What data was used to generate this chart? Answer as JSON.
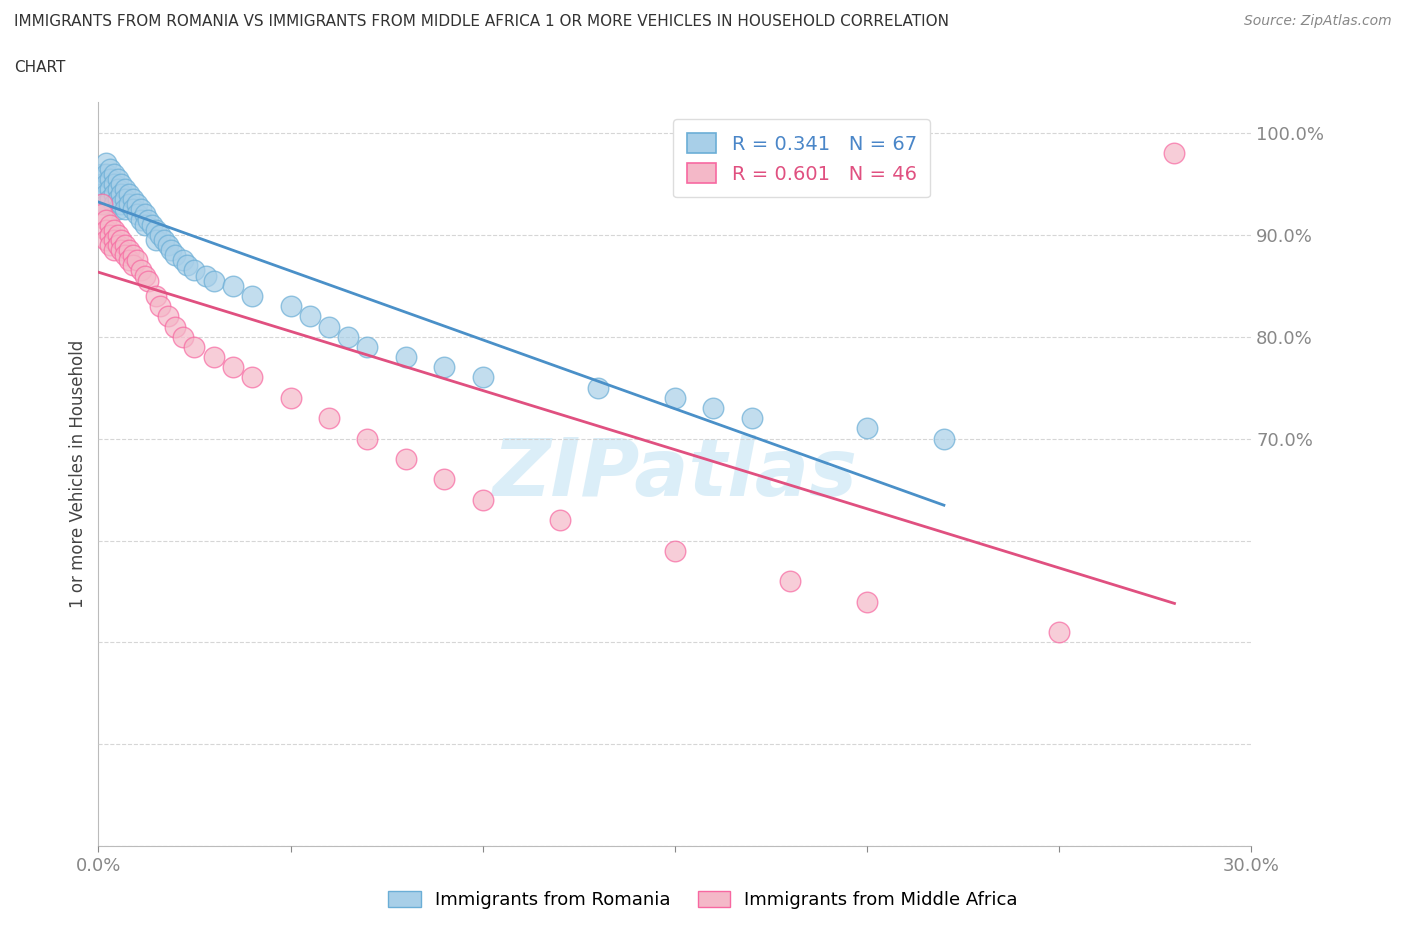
{
  "title_line1": "IMMIGRANTS FROM ROMANIA VS IMMIGRANTS FROM MIDDLE AFRICA 1 OR MORE VEHICLES IN HOUSEHOLD CORRELATION",
  "title_line2": "CHART",
  "source": "Source: ZipAtlas.com",
  "ylabel": "1 or more Vehicles in Household",
  "xlim": [
    0.0,
    0.3
  ],
  "ylim": [
    0.3,
    1.03
  ],
  "xtick_positions": [
    0.0,
    0.05,
    0.1,
    0.15,
    0.2,
    0.25,
    0.3
  ],
  "xtick_labels": [
    "0.0%",
    "",
    "",
    "",
    "",
    "",
    "30.0%"
  ],
  "ytick_positions": [
    0.3,
    0.4,
    0.5,
    0.6,
    0.7,
    0.8,
    0.9,
    1.0
  ],
  "ytick_labels": [
    "",
    "",
    "",
    "",
    "70.0%",
    "80.0%",
    "90.0%",
    "100.0%"
  ],
  "legend_romania": "Immigrants from Romania",
  "legend_africa": "Immigrants from Middle Africa",
  "R_romania": 0.341,
  "N_romania": 67,
  "R_africa": 0.601,
  "N_africa": 46,
  "romania_color": "#a8cfe8",
  "africa_color": "#f4b8c8",
  "romania_edge_color": "#6baed6",
  "africa_edge_color": "#f768a1",
  "romania_line_color": "#4a90c8",
  "africa_line_color": "#e05080",
  "watermark_color": "#d8edf8",
  "romania_x": [
    0.001,
    0.001,
    0.001,
    0.001,
    0.002,
    0.002,
    0.002,
    0.002,
    0.002,
    0.003,
    0.003,
    0.003,
    0.003,
    0.004,
    0.004,
    0.004,
    0.004,
    0.005,
    0.005,
    0.005,
    0.005,
    0.006,
    0.006,
    0.006,
    0.007,
    0.007,
    0.007,
    0.008,
    0.008,
    0.009,
    0.009,
    0.01,
    0.01,
    0.011,
    0.011,
    0.012,
    0.012,
    0.013,
    0.014,
    0.015,
    0.015,
    0.016,
    0.017,
    0.018,
    0.019,
    0.02,
    0.022,
    0.023,
    0.025,
    0.028,
    0.03,
    0.035,
    0.04,
    0.05,
    0.055,
    0.06,
    0.065,
    0.07,
    0.08,
    0.09,
    0.1,
    0.13,
    0.15,
    0.16,
    0.17,
    0.2,
    0.22
  ],
  "romania_y": [
    0.96,
    0.95,
    0.94,
    0.93,
    0.97,
    0.96,
    0.95,
    0.94,
    0.93,
    0.965,
    0.955,
    0.945,
    0.935,
    0.96,
    0.95,
    0.94,
    0.93,
    0.955,
    0.945,
    0.935,
    0.925,
    0.95,
    0.94,
    0.93,
    0.945,
    0.935,
    0.925,
    0.94,
    0.93,
    0.935,
    0.925,
    0.93,
    0.92,
    0.925,
    0.915,
    0.92,
    0.91,
    0.915,
    0.91,
    0.905,
    0.895,
    0.9,
    0.895,
    0.89,
    0.885,
    0.88,
    0.875,
    0.87,
    0.865,
    0.86,
    0.855,
    0.85,
    0.84,
    0.83,
    0.82,
    0.81,
    0.8,
    0.79,
    0.78,
    0.77,
    0.76,
    0.75,
    0.74,
    0.73,
    0.72,
    0.71,
    0.7
  ],
  "africa_x": [
    0.001,
    0.001,
    0.002,
    0.002,
    0.002,
    0.003,
    0.003,
    0.003,
    0.004,
    0.004,
    0.004,
    0.005,
    0.005,
    0.006,
    0.006,
    0.007,
    0.007,
    0.008,
    0.008,
    0.009,
    0.009,
    0.01,
    0.011,
    0.012,
    0.013,
    0.015,
    0.016,
    0.018,
    0.02,
    0.022,
    0.025,
    0.03,
    0.035,
    0.04,
    0.05,
    0.06,
    0.07,
    0.08,
    0.09,
    0.1,
    0.12,
    0.15,
    0.18,
    0.2,
    0.25,
    0.28
  ],
  "africa_y": [
    0.93,
    0.92,
    0.915,
    0.905,
    0.895,
    0.91,
    0.9,
    0.89,
    0.905,
    0.895,
    0.885,
    0.9,
    0.89,
    0.895,
    0.885,
    0.89,
    0.88,
    0.885,
    0.875,
    0.88,
    0.87,
    0.875,
    0.865,
    0.86,
    0.855,
    0.84,
    0.83,
    0.82,
    0.81,
    0.8,
    0.79,
    0.78,
    0.77,
    0.76,
    0.74,
    0.72,
    0.7,
    0.68,
    0.66,
    0.64,
    0.62,
    0.59,
    0.56,
    0.54,
    0.51,
    0.98
  ]
}
